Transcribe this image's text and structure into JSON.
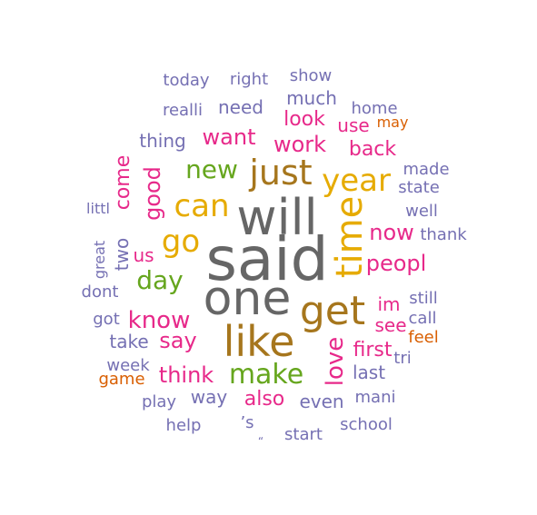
{
  "colors": {
    "gray": "#666666",
    "gold": "#e6ab02",
    "brown": "#a6761d",
    "green": "#66a61e",
    "magenta": "#e7298a",
    "purple": "#7570b3",
    "orange": "#d95f02"
  },
  "words": [
    {
      "text": "said",
      "color": "gray",
      "size": 1.0
    },
    {
      "text": "will",
      "color": "gray",
      "size": 0.86
    },
    {
      "text": "one",
      "color": "gray",
      "size": 0.82
    },
    {
      "text": "like",
      "color": "brown",
      "size": 0.72
    },
    {
      "text": "get",
      "color": "brown",
      "size": 0.7
    },
    {
      "text": "time",
      "color": "gold",
      "size": 0.66
    },
    {
      "text": "just",
      "color": "brown",
      "size": 0.6
    },
    {
      "text": "year",
      "color": "gold",
      "size": 0.52
    },
    {
      "text": "can",
      "color": "gold",
      "size": 0.5
    },
    {
      "text": "go",
      "color": "gold",
      "size": 0.5
    },
    {
      "text": "make",
      "color": "green",
      "size": 0.44
    },
    {
      "text": "new",
      "color": "green",
      "size": 0.4
    },
    {
      "text": "day",
      "color": "green",
      "size": 0.4
    },
    {
      "text": "love",
      "color": "magenta",
      "size": 0.38
    },
    {
      "text": "know",
      "color": "magenta",
      "size": 0.36
    },
    {
      "text": "peopl",
      "color": "magenta",
      "size": 0.34
    },
    {
      "text": "now",
      "color": "magenta",
      "size": 0.34
    },
    {
      "text": "good",
      "color": "magenta",
      "size": 0.32
    },
    {
      "text": "work",
      "color": "magenta",
      "size": 0.32
    },
    {
      "text": "want",
      "color": "magenta",
      "size": 0.32
    },
    {
      "text": "think",
      "color": "magenta",
      "size": 0.32
    },
    {
      "text": "say",
      "color": "magenta",
      "size": 0.32
    },
    {
      "text": "come",
      "color": "magenta",
      "size": 0.3
    },
    {
      "text": "back",
      "color": "magenta",
      "size": 0.3
    },
    {
      "text": "look",
      "color": "magenta",
      "size": 0.3
    },
    {
      "text": "first",
      "color": "magenta",
      "size": 0.3
    },
    {
      "text": "also",
      "color": "magenta",
      "size": 0.3
    },
    {
      "text": "im",
      "color": "magenta",
      "size": 0.28
    },
    {
      "text": "see",
      "color": "magenta",
      "size": 0.28
    },
    {
      "text": "use",
      "color": "magenta",
      "size": 0.28
    },
    {
      "text": "us",
      "color": "magenta",
      "size": 0.28
    },
    {
      "text": "thing",
      "color": "purple",
      "size": 0.28
    },
    {
      "text": "need",
      "color": "purple",
      "size": 0.28
    },
    {
      "text": "much",
      "color": "purple",
      "size": 0.28
    },
    {
      "text": "way",
      "color": "purple",
      "size": 0.26
    },
    {
      "text": "even",
      "color": "purple",
      "size": 0.26
    },
    {
      "text": "take",
      "color": "purple",
      "size": 0.26
    },
    {
      "text": "two",
      "color": "purple",
      "size": 0.26
    },
    {
      "text": "last",
      "color": "purple",
      "size": 0.26
    },
    {
      "text": "still",
      "color": "purple",
      "size": 0.24
    },
    {
      "text": "well",
      "color": "purple",
      "size": 0.24
    },
    {
      "text": "made",
      "color": "purple",
      "size": 0.24
    },
    {
      "text": "state",
      "color": "purple",
      "size": 0.24
    },
    {
      "text": "home",
      "color": "purple",
      "size": 0.24
    },
    {
      "text": "realli",
      "color": "purple",
      "size": 0.24
    },
    {
      "text": "mani",
      "color": "purple",
      "size": 0.24
    },
    {
      "text": "dont",
      "color": "purple",
      "size": 0.24
    },
    {
      "text": "great",
      "color": "purple",
      "size": 0.22
    },
    {
      "text": "show",
      "color": "purple",
      "size": 0.22
    },
    {
      "text": "today",
      "color": "purple",
      "size": 0.22
    },
    {
      "text": "right",
      "color": "purple",
      "size": 0.22
    },
    {
      "text": "week",
      "color": "purple",
      "size": 0.22
    },
    {
      "text": "start",
      "color": "purple",
      "size": 0.22
    },
    {
      "text": "school",
      "color": "purple",
      "size": 0.22
    },
    {
      "text": "call",
      "color": "purple",
      "size": 0.22
    },
    {
      "text": "got",
      "color": "purple",
      "size": 0.22
    },
    {
      "text": "play",
      "color": "purple",
      "size": 0.22
    },
    {
      "text": "help",
      "color": "purple",
      "size": 0.22
    },
    {
      "text": "thank",
      "color": "purple",
      "size": 0.22
    },
    {
      "text": "tri",
      "color": "purple",
      "size": 0.22
    },
    {
      "text": "littl",
      "color": "purple",
      "size": 0.2
    },
    {
      "text": "’s",
      "color": "purple",
      "size": 0.22
    },
    {
      "text": "“",
      "color": "purple",
      "size": 0.14
    },
    {
      "text": "feel",
      "color": "orange",
      "size": 0.22
    },
    {
      "text": "game",
      "color": "orange",
      "size": 0.22
    },
    {
      "text": "may",
      "color": "orange",
      "size": 0.2
    }
  ]
}
